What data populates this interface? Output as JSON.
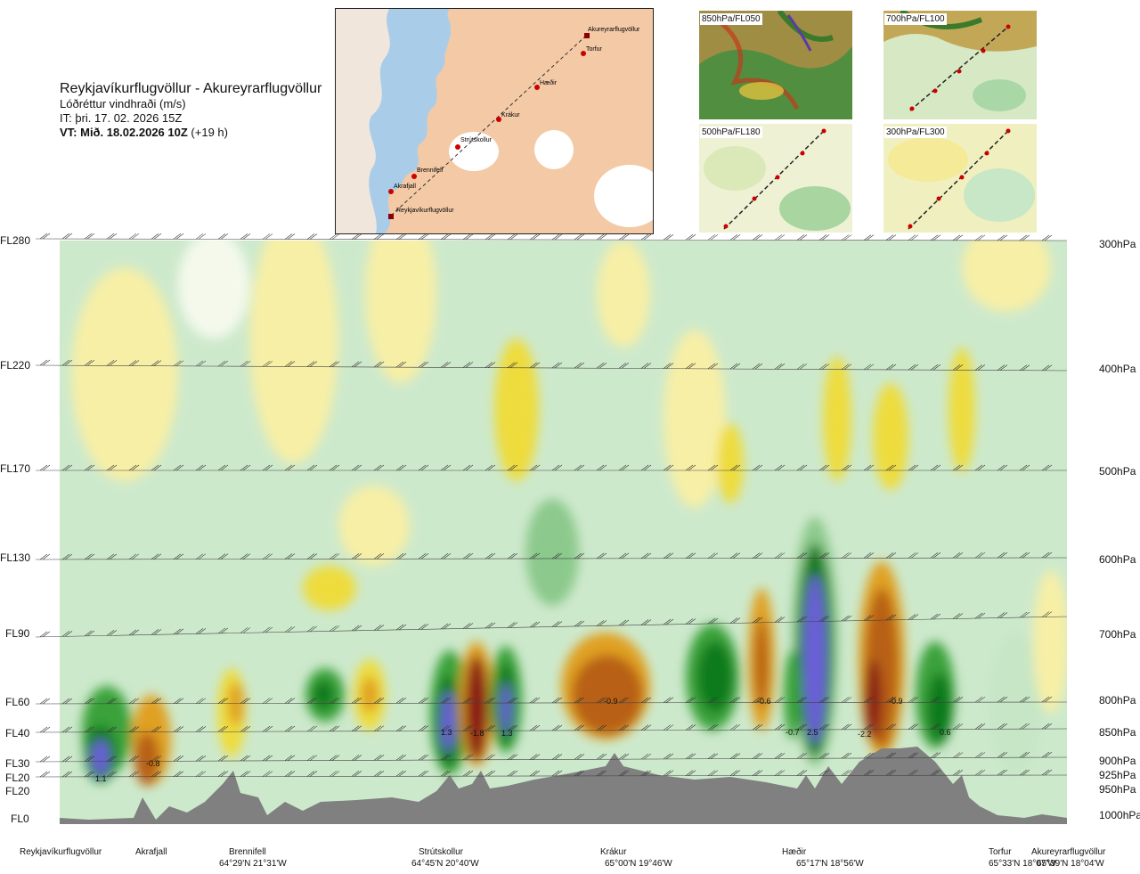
{
  "header": {
    "route": "Reykjavíkurflugvöllur - Akureyrarflugvöllur",
    "subtitle": "Lóðréttur vindhraði (m/s)",
    "issue_time": "IT: þri. 17. 02. 2026 15Z",
    "valid_time": "VT: Mið. 18.02.2026 10Z",
    "lead_time": "(+19 h)"
  },
  "route_map": {
    "waypoints": [
      "Akureyrarflugvöllur",
      "Torfur",
      "Hæðir",
      "Krákur",
      "Strútskollur",
      "Brennifell",
      "Akrafjall",
      "Reykjavíkurflugvöllur"
    ]
  },
  "mini_maps": [
    {
      "label": "850hPa/FL050"
    },
    {
      "label": "700hPa/FL100"
    },
    {
      "label": "500hPa/FL180"
    },
    {
      "label": "300hPa/FL300"
    }
  ],
  "chart_data": {
    "type": "heatmap",
    "title": "Reykjavíkurflugvöllur - Akureyrarflugvöllur",
    "variable": "Lóðréttur vindhraði (m/s)",
    "y_left_ticks": [
      "FL280",
      "FL220",
      "FL170",
      "FL130",
      "FL90",
      "FL60",
      "FL40",
      "FL30",
      "FL20",
      "FL20",
      "FL0"
    ],
    "y_right_ticks": [
      "300hPa",
      "400hPa",
      "500hPa",
      "600hPa",
      "700hPa",
      "800hPa",
      "850hPa",
      "900hPa",
      "925hPa",
      "950hPa",
      "1000hPa"
    ],
    "pressure_levels_hpa": [
      300,
      400,
      500,
      600,
      700,
      800,
      850,
      900,
      925,
      950,
      1000
    ],
    "x_waypoints": [
      {
        "name": "Reykjavíkurflugvöllur",
        "coord": ""
      },
      {
        "name": "Akrafjall",
        "coord": ""
      },
      {
        "name": "Brennifell",
        "coord": "64°29'N 21°31'W"
      },
      {
        "name": "Strútskollur",
        "coord": "64°45'N 20°40'W"
      },
      {
        "name": "Krákur",
        "coord": "65°00'N 19°46'W"
      },
      {
        "name": "Hæðir",
        "coord": "65°17'N 18°56'W"
      },
      {
        "name": "Torfur",
        "coord": "65°33'N 18°07'W"
      },
      {
        "name": "Akureyrarflugvöllur",
        "coord": "65°39'N 18°04'W"
      }
    ],
    "value_annotations": [
      "1.1",
      "-0.8",
      "1.3",
      "-1.8",
      "1.3",
      "-0.9",
      "-0.6",
      "-0.7",
      "2.5",
      "-2.2",
      "-0.9",
      "0.6"
    ],
    "colors": {
      "strong_up": "#6a5fd8",
      "up_dark": "#0a7a1a",
      "up_mid": "#3aa23a",
      "up_light": "#8cc98c",
      "up_faint": "#c6e6c6",
      "neutral": "#f4f9ec",
      "down_faint": "#f7efa6",
      "down_light": "#eedc3c",
      "down_mid": "#e0a020",
      "down_dark": "#b86018",
      "strong_down": "#8a1a12",
      "terrain": "#808080"
    }
  }
}
